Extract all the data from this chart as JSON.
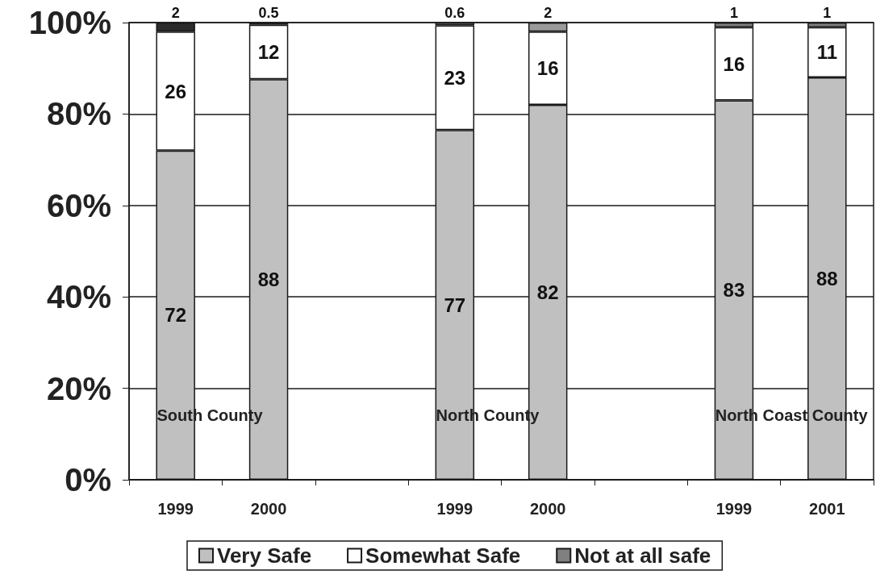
{
  "chart_data": {
    "type": "bar",
    "stacked": true,
    "categories": [
      "1999",
      "2000",
      null,
      "1999",
      "2000",
      null,
      "1999",
      "2001"
    ],
    "series": [
      {
        "name": "Very Safe",
        "color": "#c0c0c0",
        "values": [
          72,
          87.6,
          null,
          76.5,
          82,
          null,
          83,
          88
        ],
        "value_labels": [
          "72",
          "88",
          null,
          "77",
          "82",
          null,
          "83",
          "88"
        ]
      },
      {
        "name": "Somewhat Safe",
        "color": "#ffffff",
        "values": [
          26,
          11.9,
          null,
          22.9,
          16,
          null,
          16,
          11
        ],
        "value_labels": [
          "26",
          "12",
          null,
          "23",
          "16",
          null,
          "16",
          "11"
        ]
      },
      {
        "name": "Not at all safe",
        "color": "#808080",
        "colors": [
          "#2b2b2b",
          "#808080",
          null,
          "#808080",
          "#9a9a9a",
          null,
          "#808080",
          "#808080"
        ],
        "values": [
          2,
          0.5,
          null,
          0.6,
          2,
          null,
          1,
          1
        ],
        "value_labels": [
          "2",
          "0.5",
          null,
          "0.6",
          "2",
          null,
          "1",
          "1"
        ]
      }
    ],
    "ylim": [
      0,
      100
    ],
    "yticks": [
      {
        "value": 0,
        "label": "0%"
      },
      {
        "value": 20,
        "label": "20%"
      },
      {
        "value": 40,
        "label": "40%"
      },
      {
        "value": 60,
        "label": "60%"
      },
      {
        "value": 80,
        "label": "80%"
      },
      {
        "value": 100,
        "label": "100%"
      }
    ],
    "grid": "y",
    "legend": "bottom",
    "annotations": [
      "South County",
      "North County",
      "North Coast County"
    ]
  }
}
